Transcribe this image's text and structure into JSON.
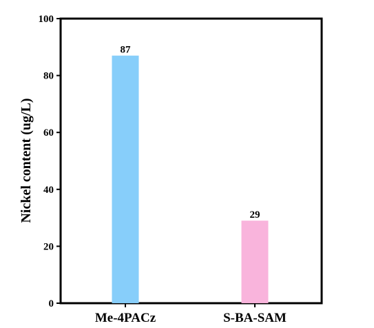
{
  "chart_data": {
    "type": "bar",
    "categories": [
      "Me-4PACz",
      "S-BA-SAM"
    ],
    "values": [
      87,
      29
    ],
    "data_labels": [
      "87",
      "29"
    ],
    "colors": [
      "#87cefa",
      "#f9b4dc"
    ],
    "title": "",
    "xlabel": "",
    "ylabel": "Nickel content (ug/L)",
    "ylim": [
      0,
      100
    ],
    "yticks": [
      0,
      20,
      40,
      60,
      80,
      100
    ],
    "ytick_labels": [
      "0",
      "20",
      "40",
      "60",
      "80",
      "100"
    ],
    "grid": false,
    "legend": false
  }
}
